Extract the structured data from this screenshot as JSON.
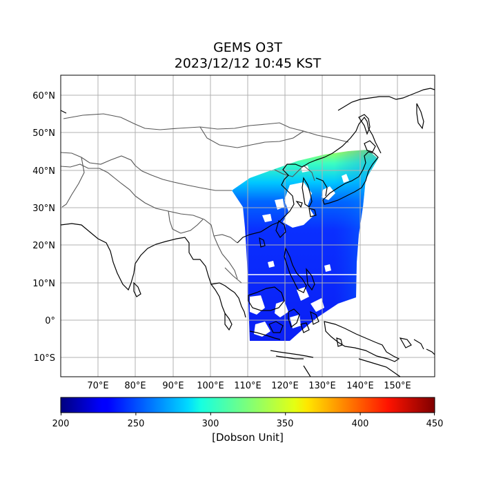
{
  "title": {
    "line1": "GEMS O3T",
    "line2": "2023/12/12 10:45 KST"
  },
  "map": {
    "projection": "PlateCarree",
    "lon_range": [
      60,
      160
    ],
    "lat_range": [
      -15,
      65
    ],
    "lat_ticks": [
      60,
      50,
      40,
      30,
      20,
      10,
      0,
      -10
    ],
    "lat_labels": [
      "60°N",
      "50°N",
      "40°N",
      "30°N",
      "20°N",
      "10°N",
      "0°",
      "10°S"
    ],
    "lon_ticks": [
      70,
      80,
      90,
      100,
      110,
      120,
      130,
      140,
      150
    ],
    "lon_labels": [
      "70°E",
      "80°E",
      "90°E",
      "100°E",
      "110°E",
      "120°E",
      "130°E",
      "140°E",
      "150°E"
    ],
    "grid": true,
    "coastline_color": "#000000",
    "border_color": "#555555"
  },
  "colorbar": {
    "colormap": "jet",
    "range": [
      200,
      450
    ],
    "ticks": [
      200,
      250,
      300,
      350,
      400,
      450
    ],
    "tick_labels": [
      "200",
      "250",
      "300",
      "350",
      "400",
      "450"
    ],
    "label": "[Dobson Unit]"
  },
  "swath": {
    "variable": "O3T",
    "value_range_shown": [
      240,
      365
    ]
  }
}
